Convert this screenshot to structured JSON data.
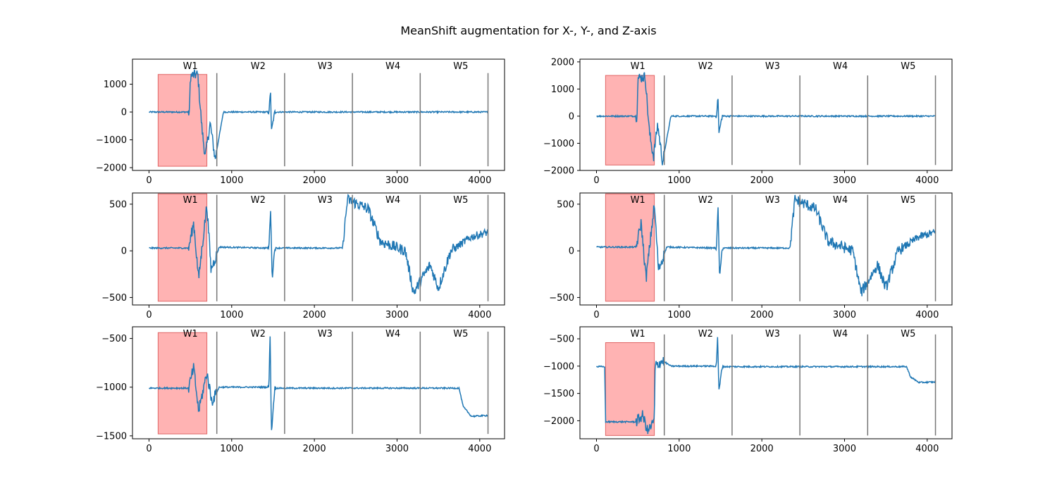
{
  "figure_title": "MeanShift augmentation for X-, Y-, and Z-axis",
  "colors": {
    "line": "#1f77b4",
    "shade_fill": "#ffb3b3",
    "shade_edge": "#e06666",
    "window_line": "#777777"
  },
  "chart_data": [
    {
      "type": "line",
      "panel": "row1-left",
      "xlim": [
        -200,
        4300
      ],
      "ylim": [
        -2100,
        1900
      ],
      "xticks": [
        0,
        1000,
        2000,
        3000,
        4000
      ],
      "yticks": [
        -2000,
        -1000,
        0,
        1000
      ],
      "windows": [
        {
          "label": "W1",
          "x_center": 500
        },
        {
          "label": "W2",
          "x_center": 1320
        },
        {
          "label": "W3",
          "x_center": 2130
        },
        {
          "label": "W4",
          "x_center": 2950
        },
        {
          "label": "W5",
          "x_center": 3770
        }
      ],
      "window_lines_x": [
        820,
        1640,
        2460,
        3280,
        4100
      ],
      "window_line_span": [
        -1950,
        1400
      ],
      "shaded_region": {
        "x": [
          110,
          700
        ],
        "y": [
          -1950,
          1350
        ]
      },
      "series_shape": [
        {
          "x": 0,
          "y": 0
        },
        {
          "x": 490,
          "y": 0
        },
        {
          "x": 500,
          "y": 1300
        },
        {
          "x": 590,
          "y": 1350
        },
        {
          "x": 640,
          "y": -600
        },
        {
          "x": 680,
          "y": -1600
        },
        {
          "x": 740,
          "y": -400
        },
        {
          "x": 800,
          "y": -1700
        },
        {
          "x": 900,
          "y": 0
        },
        {
          "x": 1450,
          "y": 0
        },
        {
          "x": 1470,
          "y": 750
        },
        {
          "x": 1480,
          "y": -700
        },
        {
          "x": 1520,
          "y": 0
        },
        {
          "x": 4100,
          "y": 0
        }
      ]
    },
    {
      "type": "line",
      "panel": "row1-right",
      "xlim": [
        -200,
        4300
      ],
      "ylim": [
        -2000,
        2100
      ],
      "xticks": [
        0,
        1000,
        2000,
        3000,
        4000
      ],
      "yticks": [
        -2000,
        -1000,
        0,
        1000,
        2000
      ],
      "windows": [
        {
          "label": "W1",
          "x_center": 500
        },
        {
          "label": "W2",
          "x_center": 1320
        },
        {
          "label": "W3",
          "x_center": 2130
        },
        {
          "label": "W4",
          "x_center": 2950
        },
        {
          "label": "W5",
          "x_center": 3770
        }
      ],
      "window_lines_x": [
        820,
        1640,
        2460,
        3280,
        4100
      ],
      "window_line_span": [
        -1800,
        1500
      ],
      "shaded_region": {
        "x": [
          110,
          700
        ],
        "y": [
          -1800,
          1500
        ]
      },
      "series_shape": [
        {
          "x": 0,
          "y": 0
        },
        {
          "x": 110,
          "y": 0
        },
        {
          "x": 490,
          "y": 0
        },
        {
          "x": 500,
          "y": 1400
        },
        {
          "x": 590,
          "y": 1450
        },
        {
          "x": 640,
          "y": -600
        },
        {
          "x": 690,
          "y": -1500
        },
        {
          "x": 740,
          "y": -300
        },
        {
          "x": 800,
          "y": -1700
        },
        {
          "x": 900,
          "y": 0
        },
        {
          "x": 1450,
          "y": 0
        },
        {
          "x": 1470,
          "y": 700
        },
        {
          "x": 1480,
          "y": -650
        },
        {
          "x": 1520,
          "y": 0
        },
        {
          "x": 4100,
          "y": 0
        }
      ]
    },
    {
      "type": "line",
      "panel": "row2-left",
      "xlim": [
        -200,
        4300
      ],
      "ylim": [
        -580,
        620
      ],
      "xticks": [
        0,
        1000,
        2000,
        3000,
        4000
      ],
      "yticks": [
        -500,
        0,
        500
      ],
      "windows": [
        {
          "label": "W1",
          "x_center": 500
        },
        {
          "label": "W2",
          "x_center": 1320
        },
        {
          "label": "W3",
          "x_center": 2130
        },
        {
          "label": "W4",
          "x_center": 2950
        },
        {
          "label": "W5",
          "x_center": 3770
        }
      ],
      "window_lines_x": [
        820,
        1640,
        2460,
        3280,
        4100
      ],
      "window_line_span": [
        -540,
        600
      ],
      "shaded_region": {
        "x": [
          110,
          700
        ],
        "y": [
          -540,
          610
        ]
      },
      "series_shape": [
        {
          "x": 0,
          "y": 30
        },
        {
          "x": 480,
          "y": 30
        },
        {
          "x": 540,
          "y": 300
        },
        {
          "x": 600,
          "y": -300
        },
        {
          "x": 700,
          "y": 500
        },
        {
          "x": 750,
          "y": -200
        },
        {
          "x": 850,
          "y": 40
        },
        {
          "x": 1450,
          "y": 30
        },
        {
          "x": 1470,
          "y": 450
        },
        {
          "x": 1490,
          "y": -300
        },
        {
          "x": 1520,
          "y": 30
        },
        {
          "x": 2340,
          "y": 30
        },
        {
          "x": 2400,
          "y": 550
        },
        {
          "x": 2650,
          "y": 450
        },
        {
          "x": 2800,
          "y": 100
        },
        {
          "x": 3100,
          "y": 0
        },
        {
          "x": 3200,
          "y": -450
        },
        {
          "x": 3400,
          "y": -150
        },
        {
          "x": 3500,
          "y": -400
        },
        {
          "x": 3650,
          "y": 0
        },
        {
          "x": 3900,
          "y": 150
        },
        {
          "x": 4100,
          "y": 200
        }
      ]
    },
    {
      "type": "line",
      "panel": "row2-right",
      "xlim": [
        -200,
        4300
      ],
      "ylim": [
        -580,
        620
      ],
      "xticks": [
        0,
        1000,
        2000,
        3000,
        4000
      ],
      "yticks": [
        -500,
        0,
        500
      ],
      "windows": [
        {
          "label": "W1",
          "x_center": 500
        },
        {
          "label": "W2",
          "x_center": 1320
        },
        {
          "label": "W3",
          "x_center": 2130
        },
        {
          "label": "W4",
          "x_center": 2950
        },
        {
          "label": "W5",
          "x_center": 3770
        }
      ],
      "window_lines_x": [
        820,
        1640,
        2460,
        3280,
        4100
      ],
      "window_line_span": [
        -540,
        600
      ],
      "shaded_region": {
        "x": [
          110,
          700
        ],
        "y": [
          -540,
          610
        ]
      },
      "series_shape": [
        {
          "x": 0,
          "y": 40
        },
        {
          "x": 480,
          "y": 40
        },
        {
          "x": 540,
          "y": 300
        },
        {
          "x": 600,
          "y": -300
        },
        {
          "x": 700,
          "y": 500
        },
        {
          "x": 750,
          "y": -200
        },
        {
          "x": 850,
          "y": 40
        },
        {
          "x": 1450,
          "y": 30
        },
        {
          "x": 1470,
          "y": 450
        },
        {
          "x": 1490,
          "y": -300
        },
        {
          "x": 1520,
          "y": 30
        },
        {
          "x": 2340,
          "y": 30
        },
        {
          "x": 2400,
          "y": 550
        },
        {
          "x": 2650,
          "y": 450
        },
        {
          "x": 2800,
          "y": 100
        },
        {
          "x": 3100,
          "y": 0
        },
        {
          "x": 3200,
          "y": -450
        },
        {
          "x": 3400,
          "y": -150
        },
        {
          "x": 3500,
          "y": -400
        },
        {
          "x": 3650,
          "y": 0
        },
        {
          "x": 3900,
          "y": 150
        },
        {
          "x": 4100,
          "y": 200
        }
      ]
    },
    {
      "type": "line",
      "panel": "row3-left",
      "xlim": [
        -200,
        4300
      ],
      "ylim": [
        -1530,
        -380
      ],
      "xticks": [
        0,
        1000,
        2000,
        3000,
        4000
      ],
      "yticks": [
        -1500,
        -1000,
        -500
      ],
      "windows": [
        {
          "label": "W1",
          "x_center": 500
        },
        {
          "label": "W2",
          "x_center": 1320
        },
        {
          "label": "W3",
          "x_center": 2130
        },
        {
          "label": "W4",
          "x_center": 2950
        },
        {
          "label": "W5",
          "x_center": 3770
        }
      ],
      "window_lines_x": [
        820,
        1640,
        2460,
        3280,
        4100
      ],
      "window_line_span": [
        -1480,
        -430
      ],
      "shaded_region": {
        "x": [
          110,
          700
        ],
        "y": [
          -1480,
          -440
        ]
      },
      "series_shape": [
        {
          "x": 0,
          "y": -1010
        },
        {
          "x": 480,
          "y": -1010
        },
        {
          "x": 540,
          "y": -800
        },
        {
          "x": 600,
          "y": -1250
        },
        {
          "x": 700,
          "y": -850
        },
        {
          "x": 760,
          "y": -1150
        },
        {
          "x": 850,
          "y": -1000
        },
        {
          "x": 1450,
          "y": -1000
        },
        {
          "x": 1465,
          "y": -430
        },
        {
          "x": 1480,
          "y": -1480
        },
        {
          "x": 1520,
          "y": -1010
        },
        {
          "x": 3750,
          "y": -1010
        },
        {
          "x": 3800,
          "y": -1200
        },
        {
          "x": 3900,
          "y": -1300
        },
        {
          "x": 4100,
          "y": -1290
        }
      ]
    },
    {
      "type": "line",
      "panel": "row3-right",
      "xlim": [
        -200,
        4300
      ],
      "ylim": [
        -2330,
        -280
      ],
      "xticks": [
        0,
        1000,
        2000,
        3000,
        4000
      ],
      "yticks": [
        -2000,
        -1500,
        -1000,
        -500
      ],
      "windows": [
        {
          "label": "W1",
          "x_center": 500
        },
        {
          "label": "W2",
          "x_center": 1320
        },
        {
          "label": "W3",
          "x_center": 2130
        },
        {
          "label": "W4",
          "x_center": 2950
        },
        {
          "label": "W5",
          "x_center": 3770
        }
      ],
      "window_lines_x": [
        820,
        1640,
        2460,
        3280,
        4100
      ],
      "window_line_span": [
        -2270,
        -420
      ],
      "shaded_region": {
        "x": [
          110,
          700
        ],
        "y": [
          -2270,
          -570
        ]
      },
      "series_shape": [
        {
          "x": 0,
          "y": -1010
        },
        {
          "x": 100,
          "y": -1010
        },
        {
          "x": 110,
          "y": -2020
        },
        {
          "x": 480,
          "y": -2020
        },
        {
          "x": 560,
          "y": -1900
        },
        {
          "x": 620,
          "y": -2200
        },
        {
          "x": 700,
          "y": -2000
        },
        {
          "x": 710,
          "y": -1000
        },
        {
          "x": 800,
          "y": -900
        },
        {
          "x": 900,
          "y": -1000
        },
        {
          "x": 1450,
          "y": -1000
        },
        {
          "x": 1465,
          "y": -420
        },
        {
          "x": 1480,
          "y": -1480
        },
        {
          "x": 1520,
          "y": -1010
        },
        {
          "x": 3750,
          "y": -1010
        },
        {
          "x": 3800,
          "y": -1200
        },
        {
          "x": 3900,
          "y": -1300
        },
        {
          "x": 4100,
          "y": -1290
        }
      ]
    }
  ]
}
